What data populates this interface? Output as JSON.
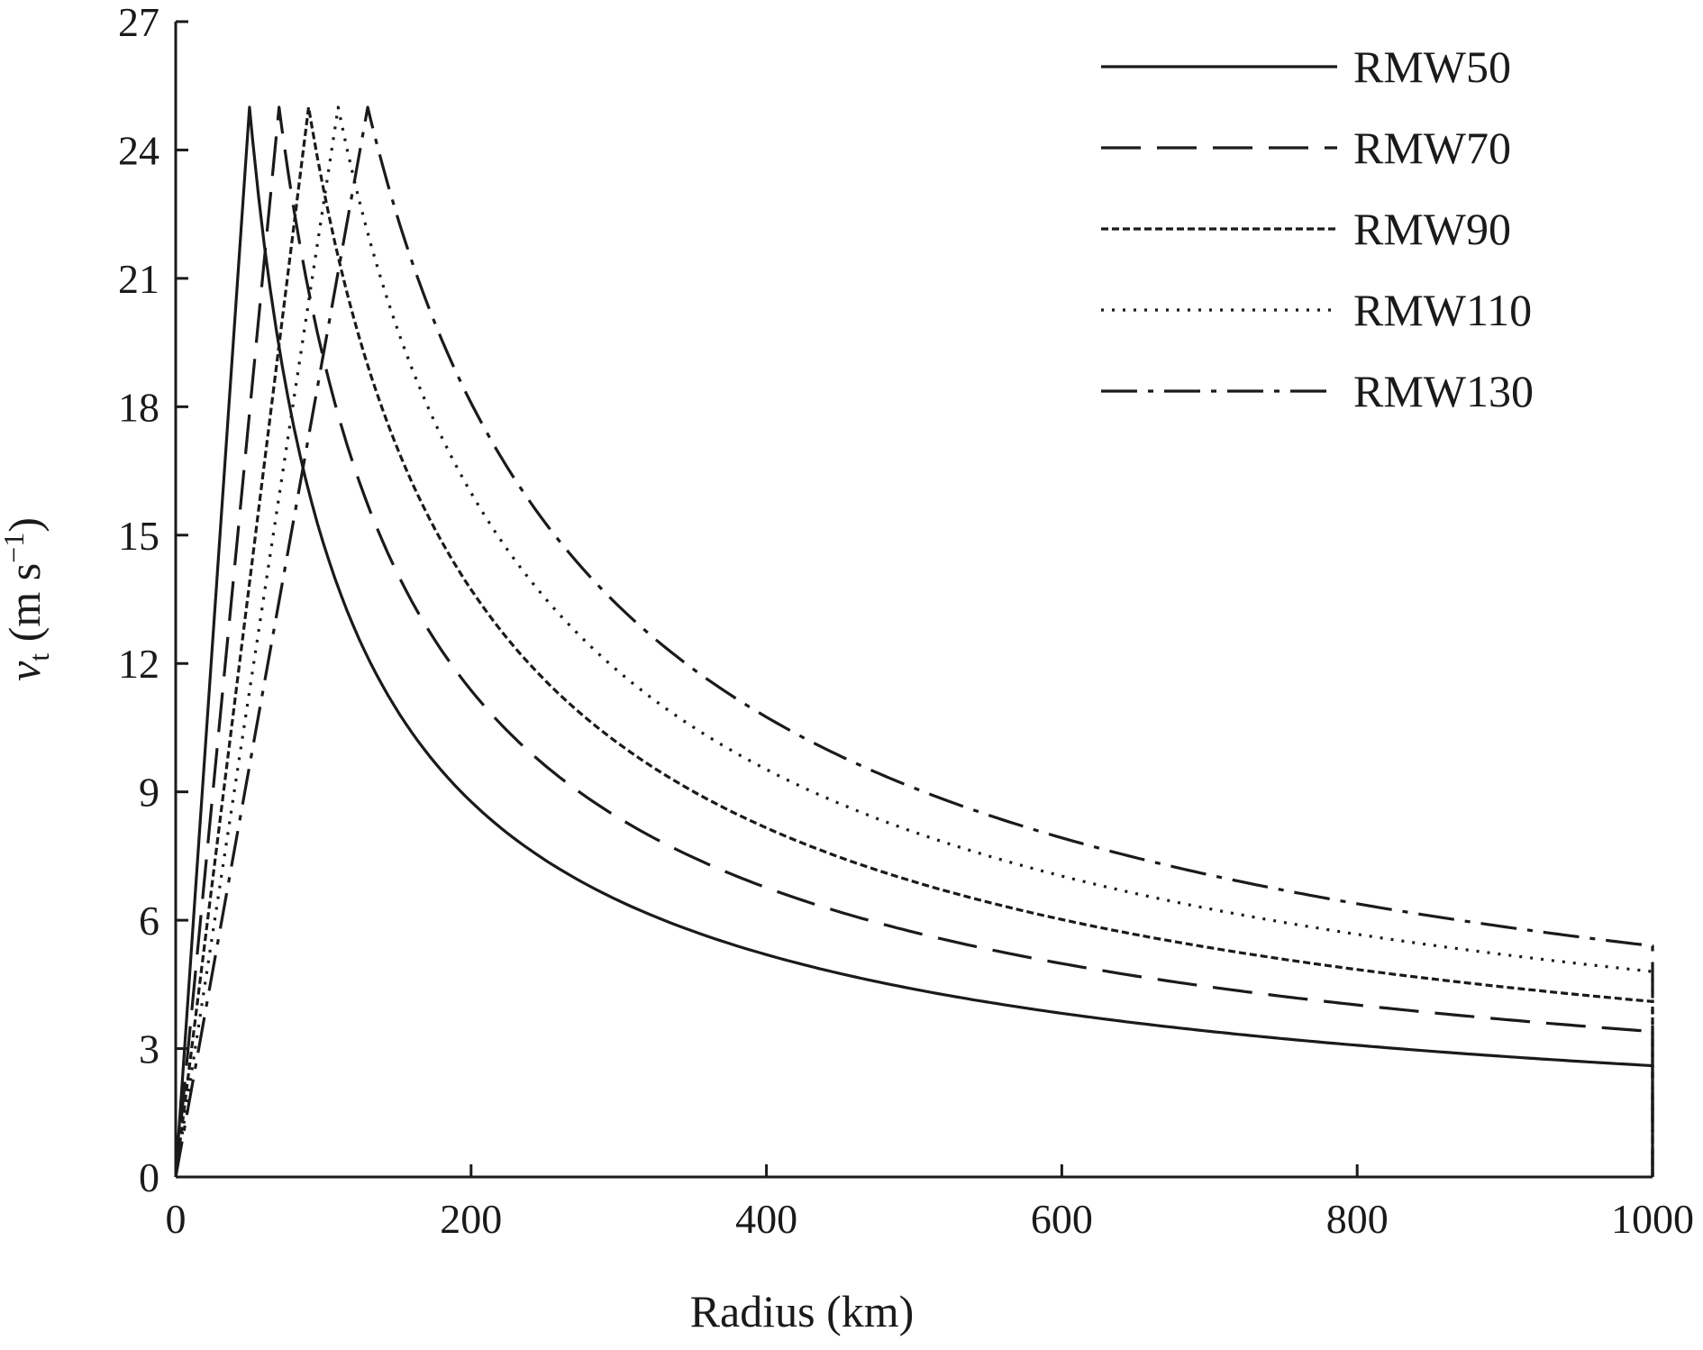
{
  "chart_data": {
    "type": "line",
    "title": "",
    "xlabel": "Radius (km)",
    "ylabel_main": "v",
    "ylabel_sub": "t",
    "ylabel_units_pre": " (m s",
    "ylabel_units_sup": "−1",
    "ylabel_units_post": ")",
    "xlim": [
      0,
      1000
    ],
    "ylim": [
      0,
      27
    ],
    "xticks": [
      0,
      200,
      400,
      600,
      800,
      1000
    ],
    "yticks": [
      0,
      3,
      6,
      9,
      12,
      15,
      18,
      21,
      24,
      27
    ],
    "grid": false,
    "legend_position": "top-right",
    "vmax": 25,
    "series": [
      {
        "name": "RMW50",
        "rmw": 50,
        "dash": "solid",
        "end_value": 2.6
      },
      {
        "name": "RMW70",
        "rmw": 70,
        "dash": "long-dash",
        "end_value": 3.4
      },
      {
        "name": "RMW90",
        "rmw": 90,
        "dash": "short-dash",
        "end_value": 4.1
      },
      {
        "name": "RMW110",
        "rmw": 110,
        "dash": "dot",
        "end_value": 4.8
      },
      {
        "name": "RMW130",
        "rmw": 130,
        "dash": "dash-dot",
        "end_value": 5.4
      }
    ]
  }
}
